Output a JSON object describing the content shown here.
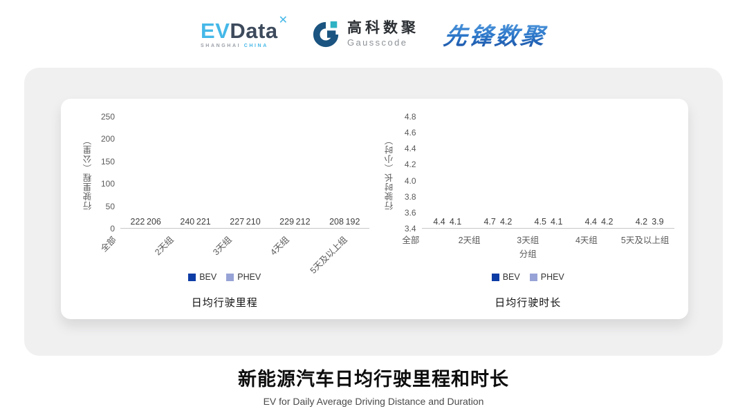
{
  "header": {
    "evdata": {
      "ev": "EV",
      "data": "Data",
      "mark": "✕",
      "sub_left": "SHANGHAI",
      "sub_right": "CHINA"
    },
    "gausscode": {
      "cn": "高科数聚",
      "en": "Gausscode"
    },
    "pioneer": {
      "text": "先锋数聚"
    }
  },
  "colors": {
    "bev": "#0D3CA5",
    "phev": "#97A3D6",
    "panel_bg": "#F0F0F1",
    "card_bg": "#FFFFFF",
    "axis_text": "#595959",
    "value_text": "#3F3F3F",
    "evdata_cyan": "#45B8E8",
    "evdata_dark": "#3D4A5C",
    "gausscode_blue": "#1B5480",
    "gausscode_teal": "#2FB3C4",
    "pioneer_blue": "#2B76C9"
  },
  "chart_data": [
    {
      "type": "bar",
      "title": "日均行驶里程",
      "ylabel": "行驶里程（公里）",
      "xlabel": "",
      "categories": [
        "全部",
        "2天组",
        "3天组",
        "4天组",
        "5天及以上组"
      ],
      "series": [
        {
          "name": "BEV",
          "color": "#0D3CA5",
          "values": [
            222,
            240,
            227,
            229,
            208
          ]
        },
        {
          "name": "PHEV",
          "color": "#97A3D6",
          "values": [
            206,
            221,
            210,
            212,
            192
          ]
        }
      ],
      "ylim": [
        0,
        250
      ],
      "yticks": [
        250,
        200,
        150,
        100,
        50,
        0
      ],
      "ytick_decimals": 0,
      "value_decimals": 0,
      "rotate_xlabels": true,
      "grid": false,
      "legend_position": "bottom"
    },
    {
      "type": "bar",
      "title": "日均行驶时长",
      "ylabel": "行驶时长（小时）",
      "xlabel": "分组",
      "categories": [
        "全部",
        "2天组",
        "3天组",
        "4天组",
        "5天及以上组"
      ],
      "series": [
        {
          "name": "BEV",
          "color": "#0D3CA5",
          "values": [
            4.4,
            4.7,
            4.5,
            4.4,
            4.2
          ]
        },
        {
          "name": "PHEV",
          "color": "#97A3D6",
          "values": [
            4.1,
            4.2,
            4.1,
            4.2,
            3.9
          ]
        }
      ],
      "ylim": [
        3.4,
        4.8
      ],
      "yticks": [
        4.8,
        4.6,
        4.4,
        4.2,
        4.0,
        3.8,
        3.6,
        3.4
      ],
      "ytick_decimals": 1,
      "value_decimals": 1,
      "rotate_xlabels": false,
      "grid": false,
      "legend_position": "bottom"
    }
  ],
  "footer": {
    "title": "新能源汽车日均行驶里程和时长",
    "subtitle": "EV for Daily Average Driving Distance and Duration"
  }
}
